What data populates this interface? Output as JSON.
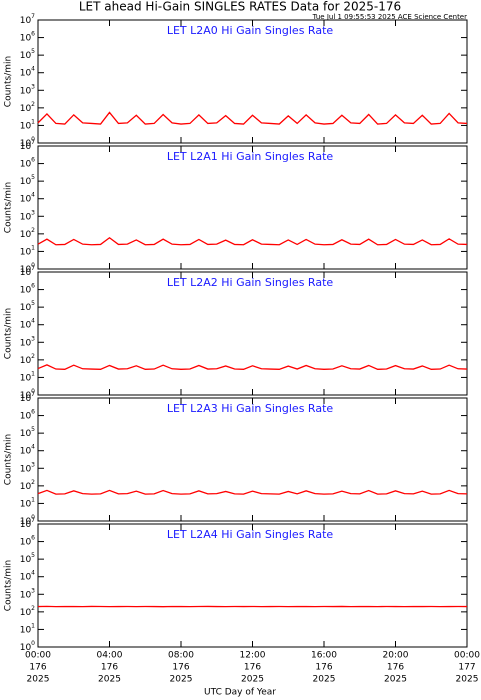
{
  "title": "LET ahead Hi-Gain SINGLES RATES Data for 2025-176",
  "timestamp": "Tue Jul  1 09:55:53 2025 ACE Science Center",
  "xlabel": "UTC Day of Year",
  "chart_data": [
    {
      "type": "line",
      "title": "LET L2A0 Hi Gain Singles Rate",
      "ylabel": "Counts/min",
      "log_y": true,
      "xlim": [
        0,
        24
      ],
      "ylim": [
        1,
        10000000
      ],
      "xticks": [
        {
          "value": 0,
          "label": "00:00",
          "day": "176",
          "year": "2025"
        },
        {
          "value": 4,
          "label": "04:00",
          "day": "176",
          "year": "2025"
        },
        {
          "value": 8,
          "label": "08:00",
          "day": "176",
          "year": "2025"
        },
        {
          "value": 12,
          "label": "12:00",
          "day": "176",
          "year": "2025"
        },
        {
          "value": 16,
          "label": "16:00",
          "day": "176",
          "year": "2025"
        },
        {
          "value": 20,
          "label": "20:00",
          "day": "176",
          "year": "2025"
        },
        {
          "value": 24,
          "label": "00:00",
          "day": "177",
          "year": "2025"
        }
      ],
      "yticks": [
        {
          "value": 1,
          "label": "10",
          "exp": "0"
        },
        {
          "value": 10,
          "label": "10",
          "exp": "1"
        },
        {
          "value": 100,
          "label": "10",
          "exp": "2"
        },
        {
          "value": 1000,
          "label": "10",
          "exp": "3"
        },
        {
          "value": 10000,
          "label": "10",
          "exp": "4"
        },
        {
          "value": 100000,
          "label": "10",
          "exp": "5"
        },
        {
          "value": 1000000,
          "label": "10",
          "exp": "6"
        },
        {
          "value": 10000000,
          "label": "10",
          "exp": "7"
        }
      ],
      "x": [
        0,
        0.5,
        1,
        1.5,
        2,
        2.5,
        3,
        3.5,
        4,
        4.5,
        5,
        5.5,
        6,
        6.5,
        7,
        7.5,
        8,
        8.5,
        9,
        9.5,
        10,
        10.5,
        11,
        11.5,
        12,
        12.5,
        13,
        13.5,
        14,
        14.5,
        15,
        15.5,
        16,
        16.5,
        17,
        17.5,
        18,
        18.5,
        19,
        19.5,
        20,
        20.5,
        21,
        21.5,
        22,
        22.5,
        23,
        23.5,
        24
      ],
      "series": [
        {
          "color": "#ff0000",
          "values": [
            14,
            45,
            13,
            12,
            40,
            14,
            13,
            12,
            55,
            13,
            14,
            38,
            12,
            13,
            42,
            14,
            12,
            13,
            40,
            13,
            14,
            36,
            13,
            12,
            38,
            14,
            13,
            12,
            35,
            13,
            40,
            14,
            12,
            13,
            38,
            14,
            13,
            42,
            12,
            13,
            40,
            14,
            13,
            38,
            12,
            13,
            48,
            14,
            13
          ]
        }
      ]
    },
    {
      "type": "line",
      "title": "LET L2A1 Hi Gain Singles Rate",
      "ylabel": "Counts/min",
      "log_y": true,
      "xlim": [
        0,
        24
      ],
      "ylim": [
        1,
        10000000
      ],
      "xticks": [
        {
          "value": 0,
          "label": "00:00",
          "day": "176",
          "year": "2025"
        },
        {
          "value": 4,
          "label": "04:00",
          "day": "176",
          "year": "2025"
        },
        {
          "value": 8,
          "label": "08:00",
          "day": "176",
          "year": "2025"
        },
        {
          "value": 12,
          "label": "12:00",
          "day": "176",
          "year": "2025"
        },
        {
          "value": 16,
          "label": "16:00",
          "day": "176",
          "year": "2025"
        },
        {
          "value": 20,
          "label": "20:00",
          "day": "176",
          "year": "2025"
        },
        {
          "value": 24,
          "label": "00:00",
          "day": "177",
          "year": "2025"
        }
      ],
      "yticks": [
        {
          "value": 1,
          "label": "10",
          "exp": "0"
        },
        {
          "value": 10,
          "label": "10",
          "exp": "1"
        },
        {
          "value": 100,
          "label": "10",
          "exp": "2"
        },
        {
          "value": 1000,
          "label": "10",
          "exp": "3"
        },
        {
          "value": 10000,
          "label": "10",
          "exp": "4"
        },
        {
          "value": 100000,
          "label": "10",
          "exp": "5"
        },
        {
          "value": 1000000,
          "label": "10",
          "exp": "6"
        },
        {
          "value": 10000000,
          "label": "10",
          "exp": "7"
        }
      ],
      "x": [
        0,
        0.5,
        1,
        1.5,
        2,
        2.5,
        3,
        3.5,
        4,
        4.5,
        5,
        5.5,
        6,
        6.5,
        7,
        7.5,
        8,
        8.5,
        9,
        9.5,
        10,
        10.5,
        11,
        11.5,
        12,
        12.5,
        13,
        13.5,
        14,
        14.5,
        15,
        15.5,
        16,
        16.5,
        17,
        17.5,
        18,
        18.5,
        19,
        19.5,
        20,
        20.5,
        21,
        21.5,
        22,
        22.5,
        23,
        23.5,
        24
      ],
      "series": [
        {
          "color": "#ff0000",
          "values": [
            26,
            50,
            24,
            25,
            48,
            26,
            24,
            25,
            60,
            25,
            26,
            45,
            24,
            25,
            50,
            26,
            24,
            25,
            48,
            25,
            26,
            44,
            25,
            24,
            46,
            26,
            25,
            24,
            45,
            25,
            48,
            26,
            24,
            25,
            46,
            26,
            25,
            50,
            24,
            25,
            48,
            26,
            25,
            45,
            24,
            25,
            52,
            26,
            25
          ]
        }
      ]
    },
    {
      "type": "line",
      "title": "LET L2A2 Hi Gain Singles Rate",
      "ylabel": "Counts/min",
      "log_y": true,
      "xlim": [
        0,
        24
      ],
      "ylim": [
        1,
        10000000
      ],
      "xticks": [
        {
          "value": 0,
          "label": "00:00",
          "day": "176",
          "year": "2025"
        },
        {
          "value": 4,
          "label": "04:00",
          "day": "176",
          "year": "2025"
        },
        {
          "value": 8,
          "label": "08:00",
          "day": "176",
          "year": "2025"
        },
        {
          "value": 12,
          "label": "12:00",
          "day": "176",
          "year": "2025"
        },
        {
          "value": 16,
          "label": "16:00",
          "day": "176",
          "year": "2025"
        },
        {
          "value": 20,
          "label": "20:00",
          "day": "176",
          "year": "2025"
        },
        {
          "value": 24,
          "label": "00:00",
          "day": "177",
          "year": "2025"
        }
      ],
      "yticks": [
        {
          "value": 1,
          "label": "10",
          "exp": "0"
        },
        {
          "value": 10,
          "label": "10",
          "exp": "1"
        },
        {
          "value": 100,
          "label": "10",
          "exp": "2"
        },
        {
          "value": 1000,
          "label": "10",
          "exp": "3"
        },
        {
          "value": 10000,
          "label": "10",
          "exp": "4"
        },
        {
          "value": 100000,
          "label": "10",
          "exp": "5"
        },
        {
          "value": 1000000,
          "label": "10",
          "exp": "6"
        },
        {
          "value": 10000000,
          "label": "10",
          "exp": "7"
        }
      ],
      "x": [
        0,
        0.5,
        1,
        1.5,
        2,
        2.5,
        3,
        3.5,
        4,
        4.5,
        5,
        5.5,
        6,
        6.5,
        7,
        7.5,
        8,
        8.5,
        9,
        9.5,
        10,
        10.5,
        11,
        11.5,
        12,
        12.5,
        13,
        13.5,
        14,
        14.5,
        15,
        15.5,
        16,
        16.5,
        17,
        17.5,
        18,
        18.5,
        19,
        19.5,
        20,
        20.5,
        21,
        21.5,
        22,
        22.5,
        23,
        23.5,
        24
      ],
      "series": [
        {
          "color": "#ff0000",
          "values": [
            32,
            52,
            30,
            29,
            50,
            31,
            30,
            29,
            48,
            30,
            31,
            46,
            29,
            30,
            50,
            31,
            29,
            30,
            48,
            30,
            31,
            45,
            30,
            29,
            46,
            31,
            30,
            29,
            44,
            30,
            48,
            31,
            29,
            30,
            46,
            31,
            30,
            48,
            29,
            30,
            47,
            31,
            30,
            45,
            29,
            30,
            50,
            31,
            30
          ]
        }
      ]
    },
    {
      "type": "line",
      "title": "LET L2A3 Hi Gain Singles Rate",
      "ylabel": "Counts/min",
      "log_y": true,
      "xlim": [
        0,
        24
      ],
      "ylim": [
        1,
        10000000
      ],
      "xticks": [
        {
          "value": 0,
          "label": "00:00",
          "day": "176",
          "year": "2025"
        },
        {
          "value": 4,
          "label": "04:00",
          "day": "176",
          "year": "2025"
        },
        {
          "value": 8,
          "label": "08:00",
          "day": "176",
          "year": "2025"
        },
        {
          "value": 12,
          "label": "12:00",
          "day": "176",
          "year": "2025"
        },
        {
          "value": 16,
          "label": "16:00",
          "day": "176",
          "year": "2025"
        },
        {
          "value": 20,
          "label": "20:00",
          "day": "176",
          "year": "2025"
        },
        {
          "value": 24,
          "label": "00:00",
          "day": "177",
          "year": "2025"
        }
      ],
      "yticks": [
        {
          "value": 1,
          "label": "10",
          "exp": "0"
        },
        {
          "value": 10,
          "label": "10",
          "exp": "1"
        },
        {
          "value": 100,
          "label": "10",
          "exp": "2"
        },
        {
          "value": 1000,
          "label": "10",
          "exp": "3"
        },
        {
          "value": 10000,
          "label": "10",
          "exp": "4"
        },
        {
          "value": 100000,
          "label": "10",
          "exp": "5"
        },
        {
          "value": 1000000,
          "label": "10",
          "exp": "6"
        },
        {
          "value": 10000000,
          "label": "10",
          "exp": "7"
        }
      ],
      "x": [
        0,
        0.5,
        1,
        1.5,
        2,
        2.5,
        3,
        3.5,
        4,
        4.5,
        5,
        5.5,
        6,
        6.5,
        7,
        7.5,
        8,
        8.5,
        9,
        9.5,
        10,
        10.5,
        11,
        11.5,
        12,
        12.5,
        13,
        13.5,
        14,
        14.5,
        15,
        15.5,
        16,
        16.5,
        17,
        17.5,
        18,
        18.5,
        19,
        19.5,
        20,
        20.5,
        21,
        21.5,
        22,
        22.5,
        23,
        23.5,
        24
      ],
      "series": [
        {
          "color": "#ff0000",
          "values": [
            36,
            55,
            34,
            35,
            52,
            36,
            34,
            35,
            55,
            35,
            36,
            50,
            34,
            35,
            54,
            36,
            34,
            35,
            52,
            35,
            36,
            48,
            35,
            34,
            50,
            36,
            35,
            34,
            48,
            35,
            52,
            36,
            34,
            35,
            50,
            36,
            35,
            54,
            34,
            35,
            52,
            36,
            35,
            50,
            34,
            35,
            55,
            36,
            35
          ]
        }
      ]
    },
    {
      "type": "line",
      "title": "LET L2A4 Hi Gain Singles Rate",
      "ylabel": "Counts/min",
      "log_y": true,
      "xlim": [
        0,
        24
      ],
      "ylim": [
        1,
        10000000
      ],
      "xticks": [
        {
          "value": 0,
          "label": "00:00",
          "day": "176",
          "year": "2025"
        },
        {
          "value": 4,
          "label": "04:00",
          "day": "176",
          "year": "2025"
        },
        {
          "value": 8,
          "label": "08:00",
          "day": "176",
          "year": "2025"
        },
        {
          "value": 12,
          "label": "12:00",
          "day": "176",
          "year": "2025"
        },
        {
          "value": 16,
          "label": "16:00",
          "day": "176",
          "year": "2025"
        },
        {
          "value": 20,
          "label": "20:00",
          "day": "176",
          "year": "2025"
        },
        {
          "value": 24,
          "label": "00:00",
          "day": "177",
          "year": "2025"
        }
      ],
      "yticks": [
        {
          "value": 1,
          "label": "10",
          "exp": "0"
        },
        {
          "value": 10,
          "label": "10",
          "exp": "1"
        },
        {
          "value": 100,
          "label": "10",
          "exp": "2"
        },
        {
          "value": 1000,
          "label": "10",
          "exp": "3"
        },
        {
          "value": 10000,
          "label": "10",
          "exp": "4"
        },
        {
          "value": 100000,
          "label": "10",
          "exp": "5"
        },
        {
          "value": 1000000,
          "label": "10",
          "exp": "6"
        },
        {
          "value": 10000000,
          "label": "10",
          "exp": "7"
        }
      ],
      "x": [
        0,
        0.5,
        1,
        1.5,
        2,
        2.5,
        3,
        3.5,
        4,
        4.5,
        5,
        5.5,
        6,
        6.5,
        7,
        7.5,
        8,
        8.5,
        9,
        9.5,
        10,
        10.5,
        11,
        11.5,
        12,
        12.5,
        13,
        13.5,
        14,
        14.5,
        15,
        15.5,
        16,
        16.5,
        17,
        17.5,
        18,
        18.5,
        19,
        19.5,
        20,
        20.5,
        21,
        21.5,
        22,
        22.5,
        23,
        23.5,
        24
      ],
      "series": [
        {
          "color": "#ff0000",
          "values": [
            200,
            205,
            198,
            202,
            200,
            199,
            203,
            201,
            198,
            200,
            202,
            199,
            201,
            200,
            197,
            202,
            200,
            199,
            201,
            203,
            200,
            198,
            201,
            200,
            202,
            199,
            200,
            201,
            198,
            202,
            200,
            199,
            201,
            200,
            203,
            198,
            200,
            202,
            199,
            201,
            200,
            198,
            202,
            200,
            201,
            199,
            200,
            202,
            200
          ]
        }
      ]
    }
  ]
}
